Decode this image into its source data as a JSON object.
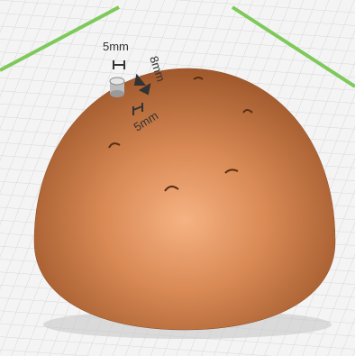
{
  "dimension_labels": [
    "5mm",
    "8mm",
    "5mm"
  ]
}
